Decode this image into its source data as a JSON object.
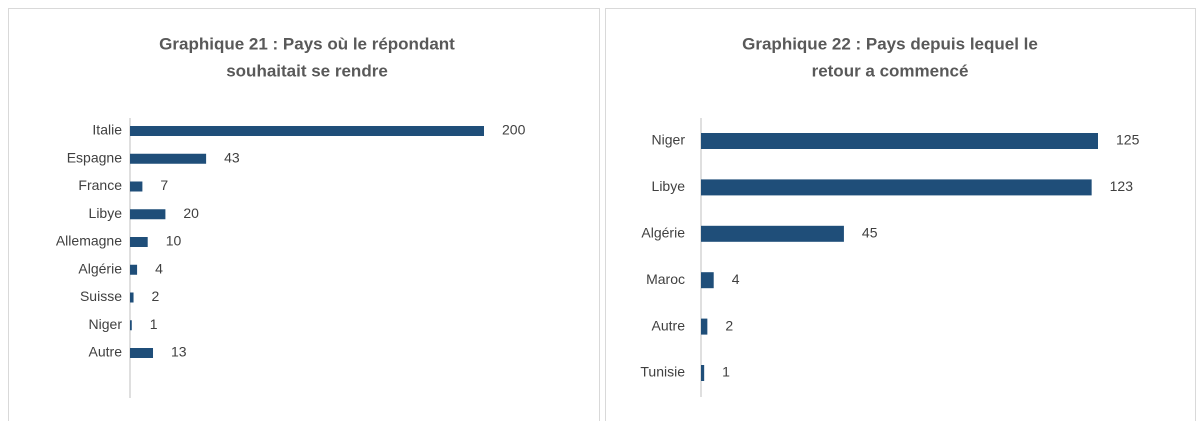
{
  "chart_data": [
    {
      "type": "bar",
      "orientation": "horizontal",
      "title": [
        "Graphique 21 : Pays où le répondant",
        "souhaitait se rendre"
      ],
      "categories": [
        "Italie",
        "Espagne",
        "France",
        "Libye",
        "Allemagne",
        "Algérie",
        "Suisse",
        "Niger",
        "Autre"
      ],
      "values": [
        200,
        43,
        7,
        20,
        10,
        4,
        2,
        1,
        13
      ],
      "color": "#1f4e79",
      "xlim": [
        0,
        200
      ]
    },
    {
      "type": "bar",
      "orientation": "horizontal",
      "title": [
        "Graphique 22 : Pays depuis lequel le",
        "retour a commencé"
      ],
      "categories": [
        "Niger",
        "Libye",
        "Algérie",
        "Maroc",
        "Autre",
        "Tunisie"
      ],
      "values": [
        125,
        123,
        45,
        4,
        2,
        1
      ],
      "color": "#1f4e79",
      "xlim": [
        0,
        125
      ]
    }
  ]
}
